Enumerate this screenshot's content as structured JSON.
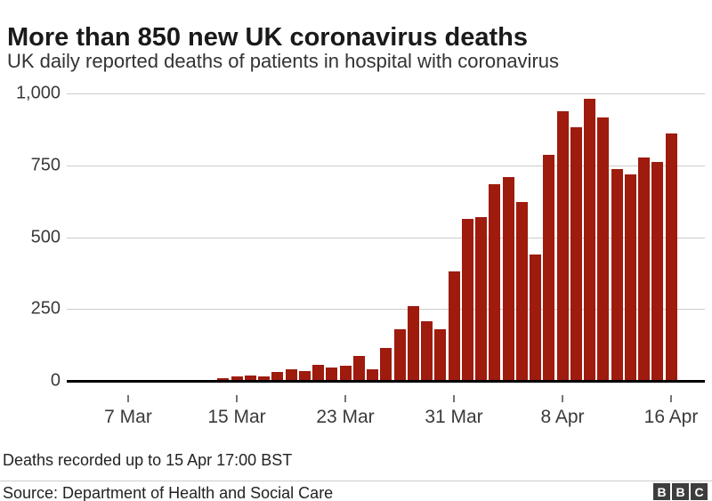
{
  "header": {
    "title": "More than 850 new UK coronavirus deaths",
    "subtitle": "UK daily reported deaths of patients in hospital with coronavirus"
  },
  "chart_data": {
    "type": "bar",
    "title": "More than 850 new UK coronavirus deaths",
    "subtitle": "UK daily reported deaths of patients in hospital with coronavirus",
    "categories": [
      "5 Mar",
      "6 Mar",
      "7 Mar",
      "8 Mar",
      "9 Mar",
      "10 Mar",
      "11 Mar",
      "12 Mar",
      "13 Mar",
      "14 Mar",
      "15 Mar",
      "16 Mar",
      "17 Mar",
      "18 Mar",
      "19 Mar",
      "20 Mar",
      "21 Mar",
      "22 Mar",
      "23 Mar",
      "24 Mar",
      "25 Mar",
      "26 Mar",
      "27 Mar",
      "28 Mar",
      "29 Mar",
      "30 Mar",
      "31 Mar",
      "1 Apr",
      "2 Apr",
      "3 Apr",
      "4 Apr",
      "5 Apr",
      "6 Apr",
      "7 Apr",
      "8 Apr",
      "9 Apr",
      "10 Apr",
      "11 Apr",
      "12 Apr",
      "13 Apr",
      "14 Apr",
      "15 Apr",
      "16 Apr"
    ],
    "values": [
      1,
      1,
      0,
      1,
      1,
      2,
      0,
      2,
      2,
      10,
      14,
      20,
      16,
      32,
      41,
      33,
      56,
      48,
      54,
      87,
      41,
      115,
      181,
      260,
      209,
      180,
      381,
      563,
      569,
      684,
      708,
      621,
      439,
      786,
      938,
      881,
      980,
      917,
      737,
      717,
      778,
      761,
      861
    ],
    "ylim": [
      0,
      1000
    ],
    "yticks": {
      "values": [
        0,
        250,
        500,
        750,
        1000
      ],
      "labels": [
        "0",
        "250",
        "500",
        "750",
        "1,000"
      ]
    },
    "xtick_labels": [
      "7 Mar",
      "15 Mar",
      "23 Mar",
      "31 Mar",
      "8 Apr",
      "16 Apr"
    ],
    "grid": true,
    "legend": "none",
    "bar_color": "#9e1b0e"
  },
  "colors": {
    "bar": "#9e1b0e",
    "gridline": "#cccccc",
    "baseline": "#000000",
    "title_text": "#1a1a1a",
    "axis_text": "#3a3a3a",
    "logo_background": "#3d3d3d"
  },
  "footer": {
    "note": "Deaths recorded up to 15 Apr 17:00 BST",
    "source": "Source: Department of Health and Social Care",
    "logo_letters": [
      "B",
      "B",
      "C"
    ]
  }
}
